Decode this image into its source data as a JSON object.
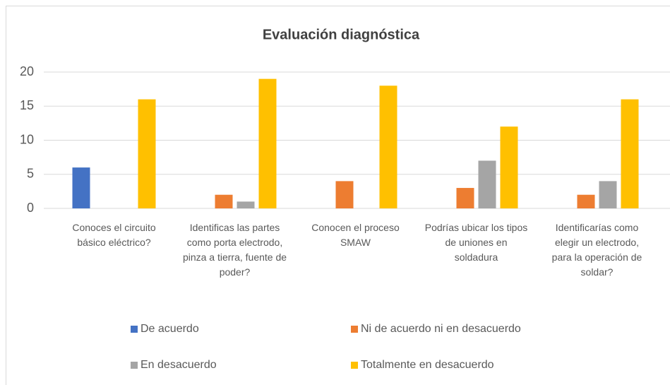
{
  "chart_data": {
    "type": "bar",
    "title": "Evaluación diagnóstica",
    "categories": [
      "Conoces el circuito básico  eléctrico?",
      "Identificas  las partes como porta electrodo, pinza a tierra,  fuente de poder?",
      "Conocen el proceso SMAW",
      "Podrías ubicar los tipos de uniones en soldadura",
      "Identificarías como elegir un electrodo, para la operación de soldar?"
    ],
    "series": [
      {
        "name": "De acuerdo",
        "color": "#4472c4",
        "values": [
          6,
          0,
          0,
          0,
          0
        ]
      },
      {
        "name": "Ni de acuerdo ni en desacuerdo",
        "color": "#ed7d31",
        "values": [
          0,
          2,
          4,
          3,
          2
        ]
      },
      {
        "name": "En desacuerdo",
        "color": "#a5a5a5",
        "values": [
          0,
          1,
          0,
          7,
          4
        ]
      },
      {
        "name": "Totalmente en desacuerdo",
        "color": "#ffc000",
        "values": [
          16,
          19,
          18,
          12,
          16
        ]
      }
    ],
    "ylim": [
      0,
      20
    ],
    "yticks": [
      0,
      5,
      10,
      15,
      20
    ],
    "grid": true,
    "legend": "bottom"
  }
}
